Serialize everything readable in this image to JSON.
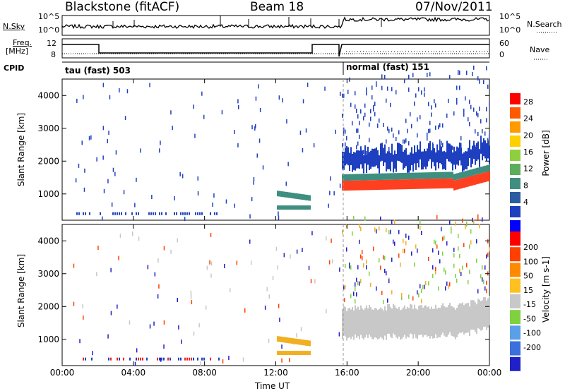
{
  "header": {
    "radar": "Blackstone (fitACF)",
    "beam": "Beam 18",
    "date": "07/Nov/2011"
  },
  "top_panels": {
    "nsky_label": "N.Sky",
    "nsearch_label": "N.Search",
    "log_ticks": [
      "10^5",
      "10^0"
    ],
    "freq_label": "Freq.",
    "freq_unit": "[MHz]",
    "freq_ticks": [
      "12",
      "8"
    ],
    "nave_label": "Nave",
    "nave_ticks": [
      "60",
      "0"
    ],
    "cpid_label": "CPID",
    "cpid_mode_1": "tau (fast) 503",
    "cpid_mode_2": "normal (fast) 151"
  },
  "chart_data": [
    {
      "type": "heatmap",
      "name": "power",
      "ylabel": "Slant Range [km]",
      "ylim": [
        200,
        4500
      ],
      "yticks": [
        "4000",
        "3000",
        "2000",
        "1000"
      ],
      "xticks": [
        "00:00",
        "04:00",
        "08:00",
        "12:00",
        "16:00",
        "20:00",
        "00:00"
      ],
      "colorbar": {
        "label": "Power [dB]",
        "ticks": [
          "28",
          "24",
          "20",
          "16",
          "12",
          "8",
          "4"
        ],
        "colors": [
          "#0000ff",
          "#1e3fbf",
          "#2b5da0",
          "#3f8f80",
          "#5cad5c",
          "#8fce3f",
          "#ffd000",
          "#ff9a00",
          "#ff5a00",
          "#ff0000"
        ]
      }
    },
    {
      "type": "heatmap",
      "name": "velocity",
      "ylabel": "Slant Range [km]",
      "ylim": [
        200,
        4500
      ],
      "yticks": [
        "4000",
        "3000",
        "2000",
        "1000"
      ],
      "xticks": [
        "00:00",
        "04:00",
        "08:00",
        "12:00",
        "16:00",
        "20:00",
        "00:00"
      ],
      "xlabel": "Time UT",
      "colorbar": {
        "label": "Velocity [m s-1]",
        "ticks": [
          "200",
          "100",
          "50",
          "15",
          "-15",
          "-50",
          "-100",
          "-200"
        ],
        "colors": [
          "#2020c8",
          "#3a6fdc",
          "#5aa0e8",
          "#7fd13f",
          "#c8c8c8",
          "#ffc020",
          "#ff8a00",
          "#ff4000",
          "#ff0000"
        ]
      }
    }
  ],
  "colors": {
    "power_bg_band": "#1e3fbf",
    "power_core": "#ff4020",
    "velocity_band": "#c8c8c8",
    "velocity_low": "#f0b020"
  }
}
